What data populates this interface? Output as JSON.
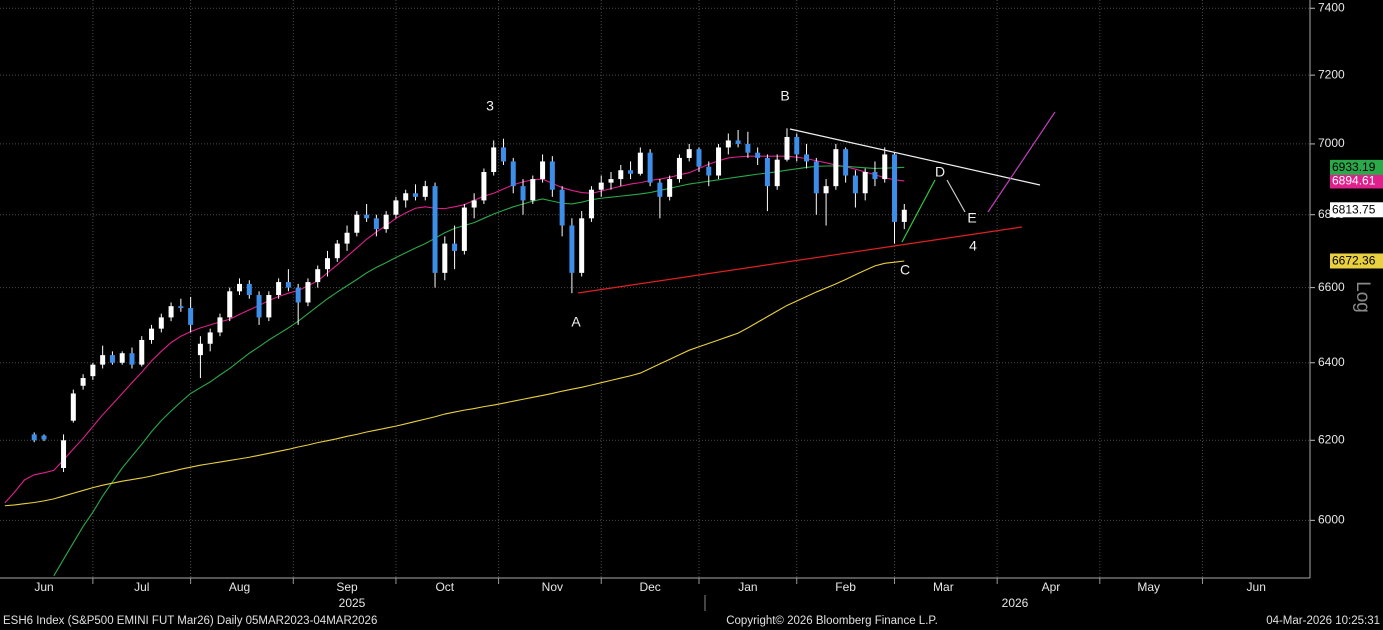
{
  "chart_data": {
    "type": "candlestick",
    "log": true,
    "ylim": [
      5860,
      7425
    ],
    "yticks": [
      6000,
      6200,
      6400,
      6600,
      6800,
      7000,
      7200,
      7400
    ],
    "y_axis_label": "Log",
    "grid": true,
    "up_color": "#ffffff",
    "down_color": "#3c8ee8",
    "years": [
      "2025",
      "2026"
    ],
    "categories": [
      null,
      null,
      null,
      null,
      "Jun",
      null,
      null,
      null,
      null,
      null,
      null,
      null,
      null,
      null,
      "Jul",
      null,
      null,
      null,
      null,
      null,
      null,
      null,
      null,
      null,
      "Aug",
      null,
      null,
      null,
      null,
      null,
      null,
      null,
      null,
      null,
      null,
      "Sep",
      null,
      null,
      null,
      null,
      null,
      null,
      null,
      null,
      null,
      "Oct",
      null,
      null,
      null,
      null,
      null,
      null,
      null,
      null,
      null,
      null,
      "Nov",
      null,
      null,
      null,
      null,
      null,
      null,
      null,
      null,
      null,
      "Dec",
      null,
      null,
      null,
      null,
      null,
      null,
      null,
      null,
      null,
      "Jan",
      null,
      null,
      null,
      null,
      null,
      null,
      null,
      null,
      null,
      "Feb",
      null,
      null,
      null,
      null,
      null,
      null,
      null,
      null,
      null,
      "Mar",
      null,
      null,
      null,
      null,
      null,
      null,
      null,
      null,
      null,
      null,
      "Apr",
      null,
      null,
      null,
      null,
      null,
      null,
      null,
      null,
      null,
      "May",
      null,
      null,
      null,
      null,
      null,
      null,
      null,
      null,
      null,
      null,
      "Jun",
      null,
      null,
      null,
      null,
      null
    ],
    "ohlc": [
      null,
      null,
      null,
      [
        6215,
        6220,
        6195,
        6200
      ],
      [
        6212,
        6215,
        6198,
        6202
      ],
      null,
      [
        6130,
        6215,
        6120,
        6200
      ],
      [
        6250,
        6330,
        6245,
        6320
      ],
      [
        6340,
        6370,
        6330,
        6360
      ],
      [
        6365,
        6400,
        6355,
        6395
      ],
      [
        6395,
        6445,
        6385,
        6420
      ],
      [
        6420,
        6430,
        6395,
        6400
      ],
      [
        6400,
        6430,
        6395,
        6425
      ],
      [
        6425,
        6440,
        6385,
        6395
      ],
      [
        6395,
        6470,
        6390,
        6460
      ],
      [
        6460,
        6500,
        6450,
        6490
      ],
      [
        6490,
        6530,
        6480,
        6520
      ],
      [
        6520,
        6560,
        6510,
        6550
      ],
      [
        6550,
        6570,
        6535,
        6545
      ],
      [
        6545,
        6575,
        6480,
        6500
      ],
      [
        6420,
        6470,
        6360,
        6450
      ],
      [
        6450,
        6490,
        6430,
        6480
      ],
      [
        6480,
        6530,
        6470,
        6520
      ],
      [
        6520,
        6600,
        6510,
        6590
      ],
      [
        6590,
        6625,
        6580,
        6610
      ],
      [
        6610,
        6620,
        6570,
        6580
      ],
      [
        6580,
        6590,
        6500,
        6520
      ],
      [
        6520,
        6590,
        6510,
        6580
      ],
      [
        6580,
        6625,
        6570,
        6615
      ],
      [
        6615,
        6650,
        6590,
        6600
      ],
      [
        6600,
        6610,
        6500,
        6560
      ],
      [
        6560,
        6625,
        6550,
        6615
      ],
      [
        6615,
        6660,
        6600,
        6650
      ],
      [
        6650,
        6700,
        6630,
        6680
      ],
      [
        6680,
        6730,
        6670,
        6720
      ],
      [
        6720,
        6770,
        6700,
        6750
      ],
      [
        6750,
        6810,
        6740,
        6800
      ],
      [
        6800,
        6830,
        6780,
        6790
      ],
      [
        6790,
        6800,
        6740,
        6760
      ],
      [
        6760,
        6810,
        6750,
        6800
      ],
      [
        6800,
        6850,
        6790,
        6840
      ],
      [
        6840,
        6870,
        6820,
        6860
      ],
      [
        6860,
        6885,
        6840,
        6850
      ],
      [
        6850,
        6895,
        6840,
        6880
      ],
      [
        6880,
        6890,
        6600,
        6640
      ],
      [
        6640,
        6740,
        6620,
        6720
      ],
      [
        6720,
        6770,
        6650,
        6700
      ],
      [
        6700,
        6830,
        6690,
        6820
      ],
      [
        6820,
        6860,
        6790,
        6840
      ],
      [
        6840,
        6930,
        6830,
        6920
      ],
      [
        6920,
        7010,
        6910,
        6990
      ],
      [
        6990,
        7015,
        6940,
        6950
      ],
      [
        6950,
        6960,
        6860,
        6880
      ],
      [
        6880,
        6900,
        6800,
        6840
      ],
      [
        6840,
        6910,
        6830,
        6900
      ],
      [
        6900,
        6970,
        6890,
        6950
      ],
      [
        6950,
        6965,
        6850,
        6870
      ],
      [
        6870,
        6880,
        6740,
        6770
      ],
      [
        6770,
        6790,
        6585,
        6640
      ],
      [
        6640,
        6810,
        6630,
        6790
      ],
      [
        6790,
        6880,
        6780,
        6870
      ],
      [
        6870,
        6910,
        6850,
        6890
      ],
      [
        6890,
        6920,
        6870,
        6900
      ],
      [
        6900,
        6940,
        6880,
        6925
      ],
      [
        6925,
        6950,
        6900,
        6915
      ],
      [
        6915,
        6990,
        6910,
        6975
      ],
      [
        6975,
        6985,
        6880,
        6890
      ],
      [
        6890,
        6900,
        6790,
        6850
      ],
      [
        6850,
        6910,
        6840,
        6900
      ],
      [
        6900,
        6970,
        6890,
        6960
      ],
      [
        6960,
        7000,
        6950,
        6985
      ],
      [
        6985,
        6990,
        6920,
        6935
      ],
      [
        6935,
        6950,
        6880,
        6910
      ],
      [
        6910,
        7000,
        6900,
        6990
      ],
      [
        6990,
        7030,
        6970,
        7010
      ],
      [
        7010,
        7040,
        6990,
        7000
      ],
      [
        7000,
        7035,
        6960,
        6975
      ],
      [
        6975,
        6990,
        6940,
        6960
      ],
      [
        6960,
        6970,
        6810,
        6880
      ],
      [
        6880,
        6970,
        6870,
        6955
      ],
      [
        6955,
        7045,
        6950,
        7020
      ],
      [
        7020,
        7030,
        6950,
        6970
      ],
      [
        6970,
        7000,
        6930,
        6950
      ],
      [
        6950,
        6960,
        6800,
        6860
      ],
      [
        6860,
        6900,
        6770,
        6880
      ],
      [
        6880,
        7000,
        6870,
        6985
      ],
      [
        6985,
        6990,
        6890,
        6910
      ],
      [
        6910,
        6925,
        6820,
        6860
      ],
      [
        6860,
        6930,
        6840,
        6920
      ],
      [
        6920,
        6950,
        6880,
        6900
      ],
      [
        6900,
        6990,
        6890,
        6970
      ],
      [
        6970,
        6975,
        6720,
        6780
      ],
      [
        6780,
        6830,
        6760,
        6813.75
      ],
      null,
      null,
      null,
      null,
      null,
      null,
      null,
      null,
      null,
      null,
      null,
      null,
      null,
      null,
      null,
      null,
      null,
      null,
      null,
      null,
      null,
      null,
      null,
      null,
      null,
      null,
      null,
      null,
      null,
      null,
      null,
      null,
      null,
      null,
      null,
      null,
      null,
      null,
      null,
      null,
      null
    ],
    "series": [
      {
        "color": "#e0208c",
        "values": [
          6043,
          6070,
          6100,
          6113,
          6118,
          6124,
          6150,
          6178,
          6205,
          6235,
          6265,
          6292,
          6320,
          6348,
          6375,
          6405,
          6430,
          6453,
          6470,
          6482,
          6492,
          6500,
          6508,
          6515,
          6528,
          6540,
          6552,
          6565,
          6576,
          6585,
          6592,
          6605,
          6618,
          6640,
          6662,
          6685,
          6708,
          6732,
          6752,
          6770,
          6790,
          6805,
          6818,
          6822,
          6818,
          6817,
          6822,
          6828,
          6840,
          6852,
          6860,
          6872,
          6884,
          6892,
          6898,
          6900,
          6888,
          6876,
          6868,
          6862,
          6860,
          6866,
          6873,
          6880,
          6886,
          6890,
          6896,
          6900,
          6905,
          6912,
          6918,
          6930,
          6942,
          6952,
          6960,
          6963,
          6965,
          6965,
          6965,
          6965,
          6965,
          6962,
          6958,
          6952,
          6946,
          6940,
          6935,
          6928,
          6920,
          6912,
          6904,
          6898,
          6894.61,
          null,
          null,
          null,
          null,
          null,
          null,
          null,
          null,
          null,
          null,
          null,
          null,
          null,
          null,
          null,
          null,
          null,
          null,
          null,
          null,
          null,
          null,
          null,
          null,
          null,
          null,
          null,
          null,
          null,
          null,
          null,
          null,
          null,
          null,
          null,
          null,
          null,
          null,
          null,
          null,
          null
        ]
      },
      {
        "color": "#2aa84a",
        "values": [
          null,
          null,
          null,
          null,
          null,
          5865,
          5905,
          5945,
          5985,
          6020,
          6060,
          6095,
          6130,
          6160,
          6190,
          6222,
          6250,
          6275,
          6298,
          6320,
          6335,
          6350,
          6368,
          6385,
          6405,
          6425,
          6442,
          6460,
          6476,
          6492,
          6510,
          6530,
          6550,
          6570,
          6588,
          6605,
          6622,
          6640,
          6655,
          6668,
          6682,
          6695,
          6708,
          6720,
          6735,
          6750,
          6762,
          6770,
          6778,
          6790,
          6802,
          6812,
          6822,
          6830,
          6838,
          6844,
          6838,
          6832,
          6830,
          6835,
          6842,
          6846,
          6849,
          6852,
          6855,
          6858,
          6862,
          6868,
          6874,
          6880,
          6886,
          6890,
          6894,
          6898,
          6902,
          6906,
          6910,
          6914,
          6917,
          6921,
          6925,
          6929,
          6933,
          6936,
          6937,
          6937,
          6936,
          6934,
          6932,
          6930,
          6931,
          6932,
          6933.19,
          null,
          null,
          null,
          null,
          null,
          null,
          null,
          null,
          null,
          null,
          null,
          null,
          null,
          null,
          null,
          null,
          null,
          null,
          null,
          null,
          null,
          null,
          null,
          null,
          null,
          null,
          null,
          null,
          null,
          null,
          null,
          null,
          null,
          null,
          null,
          null,
          null,
          null,
          null,
          null,
          null
        ]
      },
      {
        "color": "#e8d040",
        "values": [
          6036,
          6038,
          6041,
          6044,
          6048,
          6053,
          6060,
          6067,
          6074,
          6081,
          6087,
          6092,
          6097,
          6101,
          6105,
          6110,
          6116,
          6121,
          6127,
          6132,
          6137,
          6141,
          6145,
          6149,
          6153,
          6157,
          6162,
          6167,
          6172,
          6177,
          6183,
          6188,
          6194,
          6199,
          6204,
          6210,
          6215,
          6221,
          6226,
          6231,
          6236,
          6242,
          6248,
          6254,
          6260,
          6267,
          6272,
          6277,
          6281,
          6286,
          6290,
          6295,
          6300,
          6305,
          6310,
          6315,
          6320,
          6326,
          6331,
          6336,
          6342,
          6348,
          6354,
          6360,
          6366,
          6373,
          6385,
          6397,
          6409,
          6421,
          6433,
          6442,
          6451,
          6460,
          6469,
          6478,
          6492,
          6507,
          6522,
          6537,
          6552,
          6564,
          6576,
          6588,
          6599,
          6610,
          6622,
          6635,
          6647,
          6659,
          6666,
          6669,
          6672.36,
          null,
          null,
          null,
          null,
          null,
          null,
          null,
          null,
          null,
          null,
          null,
          null,
          null,
          null,
          null,
          null,
          null,
          null,
          null,
          null,
          null,
          null,
          null,
          null,
          null,
          null,
          null,
          null,
          null,
          null,
          null,
          null,
          null,
          null,
          null,
          null,
          null,
          null,
          null,
          null,
          null
        ]
      }
    ],
    "annotations": [
      "3",
      "B",
      "A",
      "C",
      "D",
      "E",
      "4"
    ],
    "footer": {
      "left": "ESH6 Index (S&P500 EMINI FUT  Mar26) Daily 05MAR2023-04MAR2026",
      "center": "Copyright© 2026 Bloomberg Finance L.P.",
      "right": "04-Mar-2026 10:25:31"
    }
  }
}
